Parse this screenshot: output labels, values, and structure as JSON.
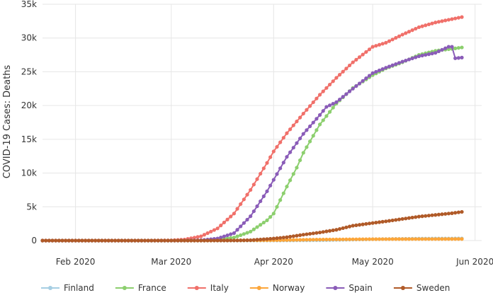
{
  "chart_data": {
    "type": "line",
    "title": "",
    "xlabel": "",
    "ylabel": "COVID-19 Cases: Deaths",
    "grid": true,
    "legend_position": "bottom",
    "x_range": [
      "2020-01-22",
      "2020-06-03"
    ],
    "ylim": [
      0,
      35000
    ],
    "y_ticks": [
      0,
      5000,
      10000,
      15000,
      20000,
      25000,
      30000,
      35000
    ],
    "y_tick_labels": [
      "0",
      "5k",
      "10k",
      "15k",
      "20k",
      "25k",
      "30k",
      "35k"
    ],
    "x_ticks": [
      "2020-02-01",
      "2020-03-01",
      "2020-04-01",
      "2020-05-01",
      "2020-06-01"
    ],
    "x_tick_labels": [
      "Feb 2020",
      "Mar 2020",
      "Apr 2020",
      "May 2020",
      "Jun 2020"
    ],
    "series": [
      {
        "name": "Finland",
        "color": "#a6cee3",
        "points": [
          [
            "2020-01-22",
            0
          ],
          [
            "2020-03-20",
            0
          ],
          [
            "2020-04-01",
            10
          ],
          [
            "2020-04-15",
            50
          ],
          [
            "2020-05-01",
            200
          ],
          [
            "2020-05-15",
            290
          ],
          [
            "2020-05-28",
            315
          ]
        ]
      },
      {
        "name": "France",
        "color": "#8ccf6e",
        "points": [
          [
            "2020-01-22",
            0
          ],
          [
            "2020-03-01",
            2
          ],
          [
            "2020-03-10",
            40
          ],
          [
            "2020-03-15",
            130
          ],
          [
            "2020-03-20",
            450
          ],
          [
            "2020-03-25",
            1330
          ],
          [
            "2020-03-30",
            3000
          ],
          [
            "2020-04-01",
            4000
          ],
          [
            "2020-04-05",
            8000
          ],
          [
            "2020-04-08",
            10800
          ],
          [
            "2020-04-10",
            13000
          ],
          [
            "2020-04-15",
            17200
          ],
          [
            "2020-04-20",
            20300
          ],
          [
            "2020-04-25",
            22600
          ],
          [
            "2020-05-01",
            24500
          ],
          [
            "2020-05-05",
            25500
          ],
          [
            "2020-05-10",
            26400
          ],
          [
            "2020-05-15",
            27500
          ],
          [
            "2020-05-20",
            28100
          ],
          [
            "2020-05-25",
            28400
          ],
          [
            "2020-05-28",
            28600
          ]
        ]
      },
      {
        "name": "Italy",
        "color": "#f0706a",
        "points": [
          [
            "2020-01-22",
            0
          ],
          [
            "2020-02-20",
            0
          ],
          [
            "2020-02-25",
            10
          ],
          [
            "2020-03-01",
            35
          ],
          [
            "2020-03-05",
            150
          ],
          [
            "2020-03-10",
            630
          ],
          [
            "2020-03-15",
            1800
          ],
          [
            "2020-03-20",
            4000
          ],
          [
            "2020-03-25",
            7500
          ],
          [
            "2020-03-30",
            11500
          ],
          [
            "2020-04-01",
            13200
          ],
          [
            "2020-04-05",
            15900
          ],
          [
            "2020-04-10",
            18800
          ],
          [
            "2020-04-15",
            21600
          ],
          [
            "2020-04-20",
            24100
          ],
          [
            "2020-04-25",
            26400
          ],
          [
            "2020-05-01",
            28700
          ],
          [
            "2020-05-05",
            29300
          ],
          [
            "2020-05-10",
            30500
          ],
          [
            "2020-05-15",
            31600
          ],
          [
            "2020-05-20",
            32300
          ],
          [
            "2020-05-25",
            32800
          ],
          [
            "2020-05-28",
            33100
          ]
        ]
      },
      {
        "name": "Norway",
        "color": "#fca63a",
        "points": [
          [
            "2020-01-22",
            0
          ],
          [
            "2020-03-12",
            0
          ],
          [
            "2020-04-01",
            50
          ],
          [
            "2020-04-15",
            150
          ],
          [
            "2020-05-01",
            210
          ],
          [
            "2020-05-15",
            230
          ],
          [
            "2020-05-28",
            235
          ]
        ]
      },
      {
        "name": "Spain",
        "color": "#8a5cb8",
        "points": [
          [
            "2020-01-22",
            0
          ],
          [
            "2020-03-01",
            0
          ],
          [
            "2020-03-05",
            5
          ],
          [
            "2020-03-10",
            50
          ],
          [
            "2020-03-15",
            300
          ],
          [
            "2020-03-20",
            1100
          ],
          [
            "2020-03-25",
            3600
          ],
          [
            "2020-03-30",
            7300
          ],
          [
            "2020-04-01",
            9000
          ],
          [
            "2020-04-05",
            12400
          ],
          [
            "2020-04-10",
            15800
          ],
          [
            "2020-04-15",
            18600
          ],
          [
            "2020-04-17",
            19800
          ],
          [
            "2020-04-20",
            20500
          ],
          [
            "2020-04-25",
            22500
          ],
          [
            "2020-05-01",
            24800
          ],
          [
            "2020-05-05",
            25600
          ],
          [
            "2020-05-10",
            26500
          ],
          [
            "2020-05-15",
            27300
          ],
          [
            "2020-05-20",
            27800
          ],
          [
            "2020-05-24",
            28700
          ],
          [
            "2020-05-25",
            28700
          ],
          [
            "2020-05-26",
            27000
          ],
          [
            "2020-05-28",
            27100
          ]
        ]
      },
      {
        "name": "Sweden",
        "color": "#b05a28",
        "points": [
          [
            "2020-01-22",
            0
          ],
          [
            "2020-03-10",
            0
          ],
          [
            "2020-03-20",
            20
          ],
          [
            "2020-03-25",
            60
          ],
          [
            "2020-04-01",
            300
          ],
          [
            "2020-04-05",
            500
          ],
          [
            "2020-04-10",
            870
          ],
          [
            "2020-04-15",
            1200
          ],
          [
            "2020-04-20",
            1600
          ],
          [
            "2020-04-25",
            2200
          ],
          [
            "2020-05-01",
            2600
          ],
          [
            "2020-05-05",
            2850
          ],
          [
            "2020-05-10",
            3200
          ],
          [
            "2020-05-15",
            3550
          ],
          [
            "2020-05-20",
            3800
          ],
          [
            "2020-05-25",
            4050
          ],
          [
            "2020-05-28",
            4250
          ]
        ]
      }
    ]
  }
}
